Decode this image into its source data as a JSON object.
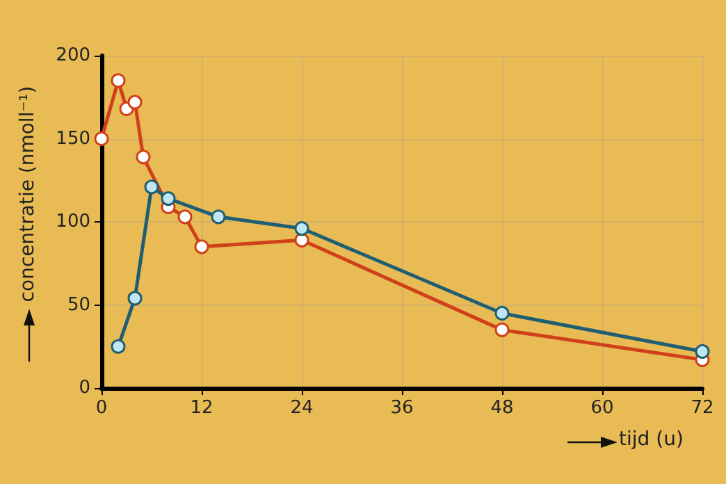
{
  "chart_data": {
    "type": "line",
    "xlabel": "tijd (u)",
    "ylabel": "concentratie (nmoll⁻¹)",
    "xlim": [
      0,
      72
    ],
    "xticks": [
      0,
      12,
      24,
      36,
      48,
      60,
      72
    ],
    "ylim": [
      0,
      200
    ],
    "yticks": [
      0,
      50,
      100,
      150,
      200
    ],
    "grid": true,
    "marker": "circle",
    "line_style": "solid",
    "series": [
      {
        "color": "#d0401a",
        "x": [
          0,
          2,
          3,
          4,
          5,
          8,
          10,
          12,
          24,
          48,
          72
        ],
        "values": [
          150,
          185,
          168,
          172,
          139,
          109,
          103,
          85,
          89,
          35,
          17
        ]
      },
      {
        "color": "#1f5e72",
        "x": [
          2,
          4,
          6,
          8,
          14,
          24,
          48,
          72
        ],
        "values": [
          25,
          54,
          121,
          114,
          103,
          96,
          45,
          22
        ]
      }
    ]
  }
}
